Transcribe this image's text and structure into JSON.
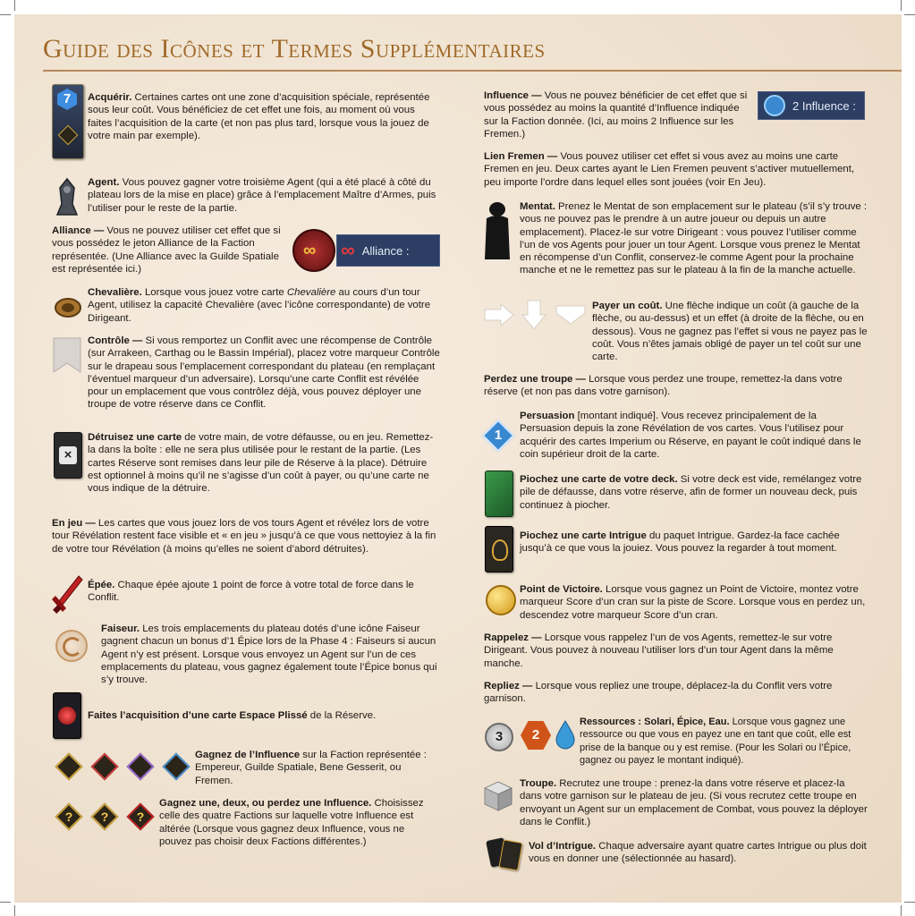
{
  "title": "Guide des Icônes et Termes Supplémentaires",
  "icons": {
    "acquerir_number": "7",
    "persuasion_number": "1",
    "resource_solari": "3",
    "resource_spice": "2",
    "question_mark": "?"
  },
  "banners": {
    "alliance": "Alliance :",
    "influence": "2 Influence :"
  },
  "left": {
    "acquerir": {
      "term": "Acquérir.",
      "text": " Certaines cartes ont une zone d’acquisition spéciale, représentée sous leur coût. Vous bénéficiez de cet effet une fois, au moment où vous faites l’acquisition de la carte (et non pas plus tard, lorsque vous la jouez de votre main par exemple)."
    },
    "agent": {
      "term": "Agent.",
      "text": " Vous pouvez gagner votre troisième Agent (qui a été placé à côté du plateau lors de la mise en place) grâce à l’emplacement Maître d’Armes, puis l’utiliser pour le reste de la partie."
    },
    "alliance": {
      "term": "Alliance —",
      "text": " Vous ne pouvez utiliser cet effet que si vous possédez le jeton Alliance de la Faction représentée. (Une Alliance avec la Guilde Spatiale est représentée ici.)"
    },
    "chevaliere": {
      "term": "Chevalière.",
      "text1": " Lorsque vous jouez votre carte ",
      "italic": "Chevalière",
      "text2": " au cours d’un tour Agent, utilisez la capacité Chevalière (avec l’icône correspondante) de votre Dirigeant."
    },
    "controle": {
      "term": "Contrôle —",
      "text": " Si vous remportez un Conflit avec une récompense de Contrôle (sur Arrakeen, Carthag ou le Bassin Impérial), placez votre marqueur Contrôle sur le drapeau sous l’emplacement correspondant du plateau (en remplaçant l’éventuel marqueur d’un adversaire). Lorsqu’une carte Conflit est révélée pour un emplacement que vous contrôlez déjà, vous pouvez déployer une troupe de votre réserve dans ce Conflit."
    },
    "detruire": {
      "term": "Détruisez une carte",
      "text": " de votre main, de votre défausse, ou en jeu. Remettez-la dans la boîte : elle ne sera plus utilisée pour le restant de la partie. (Les cartes Réserve sont remises dans leur pile de Réserve à la place). Détruire est optionnel à moins qu’il ne s’agisse d’un coût à payer, ou qu’une carte ne vous indique de la détruire."
    },
    "enjeu": {
      "term": "En jeu —",
      "text": " Les cartes que vous jouez lors de vos tours Agent et révélez lors de votre tour Révélation restent face visible et « en jeu » jusqu’à ce que vous nettoyiez à la fin de votre tour Révélation (à moins qu’elles ne soient d’abord détruites)."
    },
    "epee": {
      "term": "Épée.",
      "text": " Chaque épée ajoute 1 point de force à votre total de force dans le Conflit."
    },
    "faiseur": {
      "term": "Faiseur.",
      "text": " Les trois emplacements du plateau dotés d’une icône Faiseur gagnent chacun un bonus d’1 Épice lors de la Phase 4 : Faiseurs si aucun Agent n’y est présent. Lorsque vous envoyez un Agent sur l’un de ces emplacements du plateau, vous gagnez également toute l’Épice bonus qui s’y trouve."
    },
    "espace": {
      "term": "Faites l’acquisition d’une carte Espace Plissé",
      "text": " de la Réserve."
    },
    "gagnez_influence": {
      "term": "Gagnez de l’Influence",
      "text": " sur la Faction représentée : Empereur, Guilde Spatiale, Bene Gesserit, ou Fremen."
    },
    "gagnez_deux": {
      "term": "Gagnez une, deux, ou perdez une Influence.",
      "text": " Choisissez celle des quatre Factions sur laquelle votre Influence est altérée (Lorsque vous gagnez deux Influence, vous ne pouvez pas choisir deux Factions différentes.)"
    }
  },
  "right": {
    "influence": {
      "term": "Influence —",
      "text": " Vous ne pouvez bénéficier de cet effet que si vous possédez au moins la quantité d’Influence indiquée sur la Faction donnée. (Ici, au moins 2 Influence sur les Fremen.)"
    },
    "lien": {
      "term": "Lien Fremen —",
      "text": " Vous pouvez utiliser cet effet si vous avez au moins une carte Fremen en jeu. Deux cartes ayant le Lien Fremen peuvent s’activer mutuellement, peu importe l’ordre dans lequel elles sont jouées (voir En Jeu)."
    },
    "mentat": {
      "term": "Mentat.",
      "text": " Prenez le Mentat de son emplacement sur le plateau (s’il s’y trouve : vous ne pouvez pas le prendre à un autre joueur ou depuis un autre emplacement). Placez-le sur votre Dirigeant : vous pouvez l’utiliser comme l’un de vos Agents pour jouer un tour Agent. Lorsque vous prenez le Mentat en récompense d’un Conflit, conservez-le comme Agent pour la prochaine manche et ne le remettez pas sur le plateau à la fin de la manche actuelle."
    },
    "payer": {
      "term": "Payer un coût.",
      "text": " Une flèche indique un coût (à gauche de la flèche, ou au-dessus) et un effet (à droite de la flèche, ou en dessous). Vous ne gagnez pas l’effet si vous ne payez pas le coût. Vous n’êtes jamais obligé de payer un tel coût sur une carte."
    },
    "perdez": {
      "term": "Perdez une troupe —",
      "text": " Lorsque vous perdez une troupe, remettez-la dans votre réserve (et non pas dans votre garnison)."
    },
    "persuasion": {
      "term": "Persuasion",
      "text": " [montant indiqué]. Vous recevez principalement de la Persuasion depuis la zone Révélation de vos cartes. Vous l’utilisez pour acquérir des cartes Imperium ou Réserve, en payant le coût indiqué dans le coin supérieur droit de la carte."
    },
    "piochez_deck": {
      "term": "Piochez une carte de votre deck.",
      "text": " Si votre deck est vide, remélangez votre pile de défausse, dans votre réserve, afin de former un nouveau deck, puis continuez à piocher."
    },
    "piochez_intrigue": {
      "term": "Piochez une carte Intrigue",
      "text": " du paquet Intrigue. Gardez-la face cachée jusqu’à ce que vous la jouiez. Vous pouvez la regarder à tout moment."
    },
    "victoire": {
      "term": "Point de Victoire.",
      "text": " Lorsque vous gagnez un Point de Victoire, montez votre marqueur Score d’un cran sur la piste de Score. Lorsque vous en perdez un, descendez votre marqueur Score d’un cran."
    },
    "rappelez": {
      "term": "Rappelez —",
      "text": " Lorsque vous rappelez l’un de vos Agents, remettez-le sur votre Dirigeant. Vous pouvez à nouveau l’utiliser lors d’un tour Agent dans la même manche."
    },
    "repliez": {
      "term": "Repliez —",
      "text": " Lorsque vous repliez une troupe, déplacez-la du Conflit vers votre garnison."
    },
    "ressources": {
      "term": "Ressources : Solari, Épice, Eau.",
      "text": " Lorsque vous gagnez une ressource ou que vous en payez une en tant que coût, elle est prise de la banque ou y est remise. (Pour les Solari ou l’Épice, gagnez ou payez le montant indiqué)."
    },
    "troupe": {
      "term": "Troupe.",
      "text": " Recrutez une troupe : prenez-la dans votre réserve et placez-la dans votre garnison sur le plateau de jeu. (Si vous recrutez cette troupe en envoyant un Agent sur un emplacement de Combat, vous pouvez la déployer dans le Conflit.)"
    },
    "vol": {
      "term": "Vol d’Intrigue.",
      "text": " Chaque adversaire ayant quatre cartes Intrigue ou plus doit vous en donner une (sélectionnée au hasard)."
    }
  },
  "colors": {
    "title": "#a06a2a",
    "text": "#1e1a16",
    "gold": "#c9a13c",
    "navy": "#2c3e63"
  }
}
